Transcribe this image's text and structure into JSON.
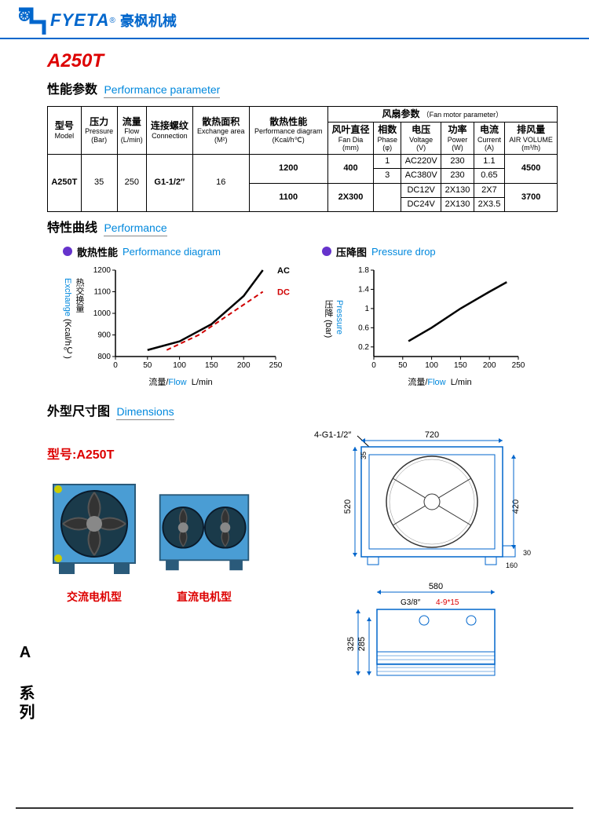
{
  "header": {
    "brand_en": "FYETA",
    "reg": "®",
    "brand_cn": "豪枫机械"
  },
  "model_title": "A250T",
  "sections": {
    "perf_param_cn": "性能参数",
    "perf_param_en": "Performance  parameter",
    "perf_curve_cn": "特性曲线",
    "perf_curve_en": "Performance",
    "dims_cn": "外型尺寸图",
    "dims_en": "Dimensions"
  },
  "table": {
    "headers": {
      "model_cn": "型号",
      "model_en": "Model",
      "pressure_cn": "压力",
      "pressure_en": "Pressure",
      "pressure_unit": "(Bar)",
      "flow_cn": "流量",
      "flow_en": "Flow",
      "flow_unit": "(L/min)",
      "conn_cn": "连接螺纹",
      "conn_en": "Connection",
      "area_cn": "散热面积",
      "area_en": "Exchange area",
      "area_unit": "(M²)",
      "perfd_cn": "散热性能",
      "perfd_en": "Performance diagram",
      "perfd_unit": "(Kcal/h℃)",
      "fan_cn": "风扇参数",
      "fan_en": "（Fan motor parameter）",
      "fandia_cn": "风叶直径",
      "fandia_en": "Fan Dia",
      "fandia_unit": "(mm)",
      "phase_cn": "相数",
      "phase_en": "Phase",
      "phase_unit": "(φ)",
      "volt_cn": "电压",
      "volt_en": "Voltage",
      "volt_unit": "(V)",
      "power_cn": "功率",
      "power_en": "Power",
      "power_unit": "(W)",
      "curr_cn": "电流",
      "curr_en": "Current",
      "curr_unit": "(A)",
      "airv_cn": "排风量",
      "airv_en": "AIR VOLUME",
      "airv_unit": "(m³/h)"
    },
    "rows": {
      "model": "A250T",
      "pressure": "35",
      "flow": "250",
      "conn": "G1-1/2″",
      "area": "16",
      "perfd1": "1200",
      "fandia1": "400",
      "phase1": "1",
      "volt1": "AC220V",
      "power1": "230",
      "curr1": "1.1",
      "airv1": "4500",
      "phase2": "3",
      "volt2": "AC380V",
      "power2": "230",
      "curr2": "0.65",
      "perfd2": "1100",
      "fandia2": "2X300",
      "volt3": "DC12V",
      "power3": "2X130",
      "curr3": "2X7",
      "airv2": "3700",
      "volt4": "DC24V",
      "power4": "2X130",
      "curr4": "2X3.5"
    }
  },
  "chart1": {
    "title_cn": "散热性能",
    "title_en": "Performance diagram",
    "dot_color": "#6633cc",
    "yticks": [
      800,
      900,
      1000,
      1100,
      1200
    ],
    "xticks": [
      0,
      50,
      100,
      150,
      200,
      250
    ],
    "ylabel_cn": "热交换量",
    "ylabel_en": "Exchange",
    "ylabel_unit": "(Kcal/h℃)",
    "xlabel_cn": "流量/",
    "xlabel_en": "Flow",
    "xlabel_unit": "L/min",
    "ac_label": "AC",
    "dc_label": "DC",
    "ac_color": "#000000",
    "dc_color": "#d00000",
    "ac_line": [
      [
        50,
        830
      ],
      [
        100,
        870
      ],
      [
        150,
        950
      ],
      [
        200,
        1080
      ],
      [
        230,
        1200
      ]
    ],
    "dc_line": [
      [
        80,
        830
      ],
      [
        130,
        900
      ],
      [
        180,
        1000
      ],
      [
        230,
        1100
      ]
    ],
    "xlim": [
      0,
      250
    ],
    "ylim": [
      800,
      1200
    ]
  },
  "chart2": {
    "title_cn": "压降图",
    "title_en": "Pressure drop",
    "dot_color": "#6633cc",
    "yticks": [
      0.2,
      0.6,
      1.0,
      1.4,
      1.8
    ],
    "xticks": [
      0,
      50,
      100,
      150,
      200,
      250
    ],
    "ylabel_cn": "压降",
    "ylabel_en": "Pressure",
    "ylabel_unit": "(bar)",
    "xlabel_cn": "流量/",
    "xlabel_en": "Flow",
    "xlabel_unit": "L/min",
    "line_color": "#000000",
    "line": [
      [
        60,
        0.32
      ],
      [
        100,
        0.6
      ],
      [
        150,
        1.0
      ],
      [
        200,
        1.35
      ],
      [
        230,
        1.55
      ]
    ],
    "xlim": [
      0,
      250
    ],
    "ylim": [
      0,
      1.8
    ]
  },
  "dims": {
    "model_label": "型号:A250T",
    "ac_caption": "交流电机型",
    "dc_caption": "直流电机型",
    "w_top": "720",
    "h_left": "520",
    "h_arrow": "35",
    "h_right": "420",
    "w_base": "160",
    "h_base": "30",
    "port_label": "4-G1-1/2″",
    "side_w": "580",
    "side_h": "325",
    "side_h2": "285",
    "g38": "G3/8″",
    "hole": "4-9*15"
  },
  "series_label": "A 系列",
  "colors": {
    "cooler_body": "#4a9dd4",
    "cooler_dark": "#2a5a7a",
    "photo_bg": "#fdfdfd"
  }
}
